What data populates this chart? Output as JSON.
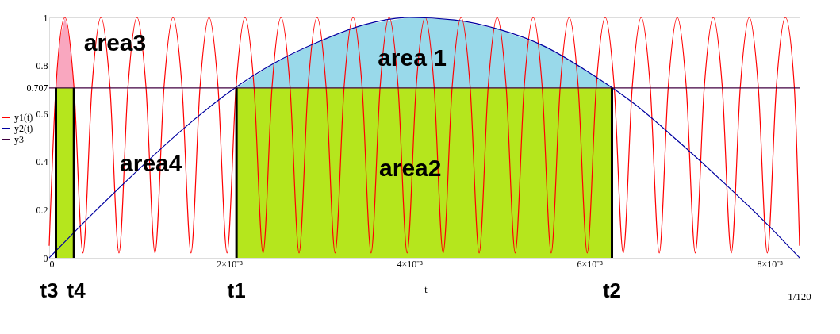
{
  "chart_data": {
    "type": "line",
    "xlabel": "t",
    "legend": "left",
    "tick_labels": true,
    "xlim": [
      0,
      0.008333
    ],
    "ylim": [
      0,
      1
    ],
    "xticks": [
      0,
      {
        "value": 0.002,
        "label": "2×10⁻³"
      },
      {
        "value": 0.004,
        "label": "4×10⁻³"
      },
      {
        "value": 0.006,
        "label": "6×10⁻³"
      },
      {
        "value": 0.008,
        "label": "8×10⁻³"
      }
    ],
    "yticks": [
      0,
      0.2,
      0.4,
      0.6,
      0.707,
      0.8,
      1
    ],
    "series": [
      {
        "type": "area",
        "color": "#99d9ea",
        "x": [
          0.00208,
          0.0025,
          0.003,
          0.0035,
          0.004,
          0.0045,
          0.005,
          0.0055,
          0.006,
          0.00625
        ],
        "values": [
          0.707,
          0.81,
          0.9,
          0.97,
          1.0,
          0.99,
          0.95,
          0.88,
          0.77,
          0.707
        ]
      },
      {
        "type": "area",
        "color": "#f9a7bf",
        "x": [
          7.5e-05,
          0.000125,
          0.000175,
          0.000225,
          0.000275
        ],
        "values": [
          0.707,
          0.92,
          1.0,
          0.92,
          0.707
        ]
      },
      {
        "type": "area",
        "color": "#b5e61d",
        "x": [
          0.00208,
          0.00625
        ],
        "values": [
          0.707,
          0.707
        ]
      },
      {
        "type": "area",
        "color": "#b5e61d",
        "x": [
          7.5e-05,
          0.000275
        ],
        "values": [
          0.707,
          0.707
        ]
      },
      {
        "name": "y1(t)",
        "color": "#ff0000",
        "x": [
          0,
          7.5e-05,
          0.000175,
          0.000275,
          0.000375,
          0.000475,
          0.000575,
          0.000675,
          0.000775,
          0.000875,
          0.000975,
          0.001075,
          0.001175,
          0.001275,
          0.001375,
          0.001475,
          0.001575,
          0.001675,
          0.001775,
          0.001875,
          0.001975,
          0.002075,
          0.002175,
          0.002275,
          0.002375,
          0.002475,
          0.002575,
          0.002675,
          0.002775,
          0.002875,
          0.002975,
          0.003075,
          0.003175,
          0.003275,
          0.003375,
          0.003475,
          0.003575,
          0.003675,
          0.003775,
          0.003875,
          0.003975,
          0.004075,
          0.004175,
          0.004275,
          0.004375,
          0.004475,
          0.004575,
          0.004675,
          0.004775,
          0.004875,
          0.004975,
          0.005075,
          0.005175,
          0.005275,
          0.005375,
          0.005475,
          0.005575,
          0.005675,
          0.005775,
          0.005875,
          0.005975,
          0.006075,
          0.006175,
          0.006275,
          0.006375,
          0.006475,
          0.006575,
          0.006675,
          0.006775,
          0.006875,
          0.006975,
          0.007075,
          0.007175,
          0.007275,
          0.007375,
          0.007475,
          0.007575,
          0.007675,
          0.007775,
          0.007875,
          0.007975,
          0.008075,
          0.008175,
          0.008275,
          0.008333
        ],
        "values": [
          0.05,
          0.71,
          1,
          0.71,
          0.02,
          0.71,
          1,
          0.71,
          0.02,
          0.71,
          1,
          0.71,
          0.02,
          0.71,
          1,
          0.71,
          0.02,
          0.71,
          1,
          0.71,
          0.02,
          0.71,
          1,
          0.71,
          0.02,
          0.71,
          1,
          0.71,
          0.02,
          0.71,
          1,
          0.71,
          0.02,
          0.71,
          1,
          0.71,
          0.02,
          0.71,
          1,
          0.71,
          0.02,
          0.71,
          1,
          0.71,
          0.02,
          0.71,
          1,
          0.71,
          0.02,
          0.71,
          1,
          0.71,
          0.02,
          0.71,
          1,
          0.71,
          0.02,
          0.71,
          1,
          0.71,
          0.02,
          0.71,
          1,
          0.71,
          0.02,
          0.71,
          1,
          0.71,
          0.02,
          0.71,
          1,
          0.71,
          0.02,
          0.71,
          1,
          0.71,
          0.02,
          0.71,
          1,
          0.71,
          0.02,
          0.71,
          1,
          0.71,
          0.05
        ]
      },
      {
        "name": "y2(t)",
        "color": "#0000a0",
        "x": [
          0,
          0.0005,
          0.001,
          0.0015,
          0.002,
          0.0025,
          0.003,
          0.0035,
          0.004,
          0.0045,
          0.005,
          0.0055,
          0.006,
          0.0065,
          0.007,
          0.0075,
          0.008,
          0.008333
        ],
        "values": [
          0,
          0.19,
          0.37,
          0.54,
          0.69,
          0.81,
          0.9,
          0.97,
          1.0,
          0.99,
          0.95,
          0.88,
          0.77,
          0.64,
          0.48,
          0.31,
          0.13,
          0
        ]
      },
      {
        "name": "y3",
        "color": "#400040",
        "x": [
          0,
          0.008333
        ],
        "values": [
          0.707,
          0.707
        ]
      },
      {
        "type": "line",
        "color": "#000000",
        "x": [
          7.5e-05,
          7.5e-05
        ],
        "values": [
          0,
          0.707
        ]
      },
      {
        "type": "line",
        "color": "#000000",
        "x": [
          0.000275,
          0.000275
        ],
        "values": [
          0,
          0.707
        ]
      },
      {
        "type": "line",
        "color": "#000000",
        "x": [
          0.00208,
          0.00208
        ],
        "values": [
          0,
          0.707
        ]
      },
      {
        "type": "line",
        "color": "#000000",
        "x": [
          0.00625,
          0.00625
        ],
        "values": [
          0,
          0.707
        ]
      }
    ],
    "annotations": [
      {
        "text": "area 1",
        "x": 0.00403,
        "y": 0.83
      },
      {
        "text": "area2",
        "x": 0.00401,
        "y": 0.37
      },
      "area3",
      {
        "text": "area4",
        "x": 0.00113,
        "y": 0.39
      },
      {
        "text": "t3",
        "x": 0,
        "y": 0
      },
      {
        "text": "t4",
        "x": 0.0003,
        "y": 0
      },
      {
        "text": "t1",
        "x": 0.00208,
        "y": 0
      },
      {
        "text": "t2",
        "x": 0.00625,
        "y": 0
      },
      "1/120"
    ]
  }
}
